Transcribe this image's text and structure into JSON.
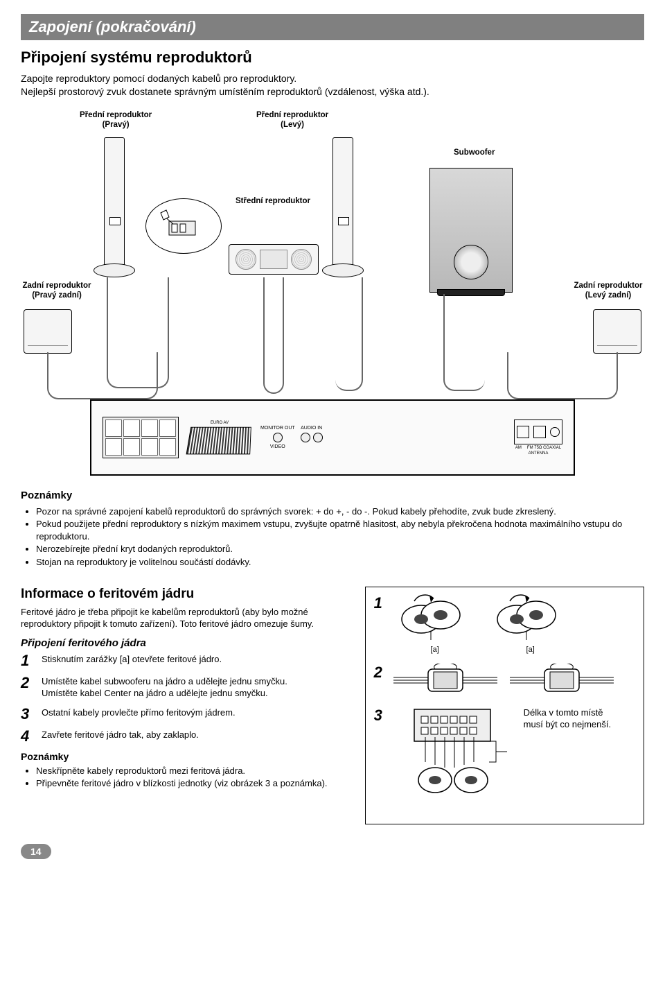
{
  "header": {
    "title": "Zapojení (pokračování)"
  },
  "subtitle": "Připojení systému reproduktorů",
  "lead": "Zapojte reproduktory pomocí dodaných kabelů pro reproduktory.\nNejlepší prostorový zvuk dostanete správným umístěním reproduktorů (vzdálenost, výška atd.).",
  "labels": {
    "front_right": "Přední reproduktor\n(Pravý)",
    "front_left": "Přední reproduktor\n(Levý)",
    "subwoofer": "Subwoofer",
    "center": "Střední reproduktor",
    "rear_right_surround": "Zadní reproduktor\n(Pravý zadní)",
    "rear_left_surround": "Zadní reproduktor\n(Levý zadní)"
  },
  "rear_panel": {
    "scart_label": "EURO AV",
    "monitor_label": "MONITOR OUT",
    "video_label": "VIDEO",
    "audio_label": "AUDIO IN",
    "ant_label": "ANTENNA",
    "am_label": "AM",
    "fm_label": "FM 75Ω COAXIAL"
  },
  "notes_title": "Poznámky",
  "notes": [
    "Pozor na správné zapojení kabelů reproduktorů do správných svorek: + do +, - do -. Pokud kabely přehodíte, zvuk bude zkreslený.",
    "Pokud použijete přední reproduktory s nízkým maximem vstupu, zvyšujte opatrně hlasitost, aby nebyla překročena hodnota maximálního vstupu do reproduktoru.",
    "Nerozebírejte přední kryt dodaných reproduktorů.",
    "Stojan na reproduktory je volitelnou součástí dodávky."
  ],
  "ferrite": {
    "title": "Informace o feritovém jádru",
    "lead": "Feritové jádro je třeba připojit ke kabelům reproduktorů (aby bylo možné reproduktory připojit k tomuto zařízení). Toto feritové jádro omezuje šumy.",
    "subtitle": "Připojení feritového jádra",
    "steps": [
      {
        "n": "1",
        "text": "Stisknutím zarážky [a] otevřete feritové jádro."
      },
      {
        "n": "2",
        "text": "Umístěte kabel subwooferu na jádro a udělejte jednu smyčku.\nUmístěte kabel Center na jádro a udělejte jednu smyčku."
      },
      {
        "n": "3",
        "text": "Ostatní kabely provlečte přímo feritovým jádrem."
      },
      {
        "n": "4",
        "text": "Zavřete feritové jádro tak, aby zaklaplo."
      }
    ],
    "notes_title": "Poznámky",
    "notes": [
      "Neskřípněte kabely reproduktorů mezi feritová jádra.",
      "Připevněte feritové jádro v blízkosti jednotky (viz obrázek 3 a poznámka)."
    ],
    "fig": {
      "a_bracket": "[a]",
      "caption3": "Délka v tomto místě musí být co nejmenší."
    }
  },
  "page_number": "14",
  "colors": {
    "header_bg": "#808080",
    "text": "#000000",
    "bg": "#ffffff",
    "wire": "#666666",
    "page_badge": "#888888"
  }
}
